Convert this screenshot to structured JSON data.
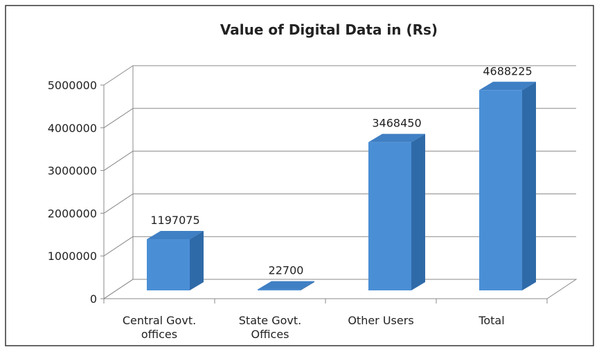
{
  "chart_data": {
    "type": "bar3d",
    "title": "Value of Digital Data in (Rs)",
    "categories": [
      "Central Govt. offices",
      "State Govt. Offices",
      "Other Users",
      "Total"
    ],
    "values": [
      1197075,
      22700,
      3468450,
      4688225
    ],
    "color": "#4a8fd6",
    "ylim": [
      0,
      5000000
    ],
    "yticks": [
      0,
      1000000,
      2000000,
      3000000,
      4000000,
      5000000
    ],
    "grid": true
  }
}
